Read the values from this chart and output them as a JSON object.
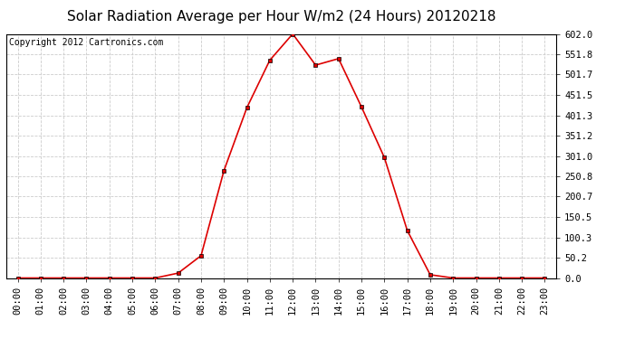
{
  "title": "Solar Radiation Average per Hour W/m2 (24 Hours) 20120218",
  "copyright_text": "Copyright 2012 Cartronics.com",
  "hours": [
    "00:00",
    "01:00",
    "02:00",
    "03:00",
    "04:00",
    "05:00",
    "06:00",
    "07:00",
    "08:00",
    "09:00",
    "10:00",
    "11:00",
    "12:00",
    "13:00",
    "14:00",
    "15:00",
    "16:00",
    "17:00",
    "18:00",
    "19:00",
    "20:00",
    "21:00",
    "22:00",
    "23:00"
  ],
  "values": [
    0.0,
    0.0,
    0.0,
    0.0,
    0.0,
    0.0,
    0.0,
    12.0,
    55.0,
    265.0,
    420.0,
    537.0,
    602.0,
    525.0,
    541.0,
    422.0,
    297.0,
    117.0,
    8.0,
    0.0,
    0.0,
    0.0,
    0.0,
    0.0
  ],
  "line_color": "#dd0000",
  "marker_color": "#000000",
  "bg_color": "#ffffff",
  "plot_bg_color": "#ffffff",
  "grid_color": "#cccccc",
  "ymin": 0.0,
  "ymax": 602.0,
  "yticks": [
    0.0,
    50.2,
    100.3,
    150.5,
    200.7,
    250.8,
    301.0,
    351.2,
    401.3,
    451.5,
    501.7,
    551.8,
    602.0
  ],
  "title_fontsize": 11,
  "copyright_fontsize": 7,
  "tick_fontsize": 7.5
}
